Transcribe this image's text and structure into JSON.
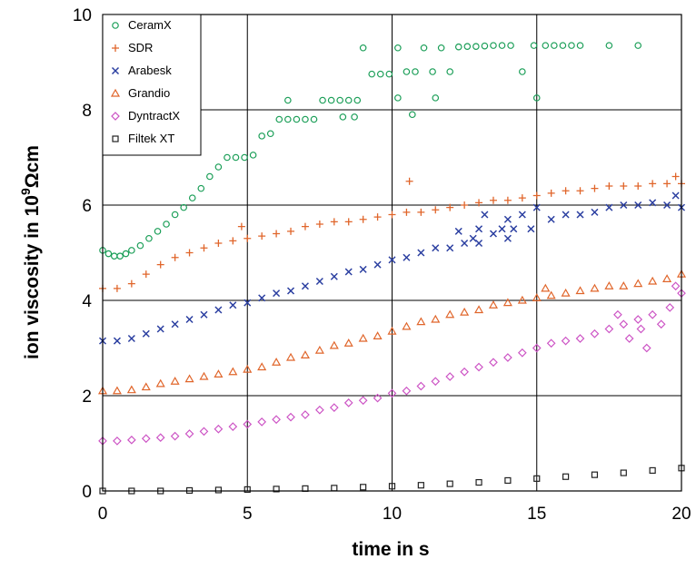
{
  "chart_data": {
    "type": "scatter",
    "title": "",
    "xlabel": "time in s",
    "ylabel_parts": [
      "ion viscosity in 10",
      "9",
      "Ωcm"
    ],
    "xlim": [
      0,
      20
    ],
    "ylim": [
      0,
      10
    ],
    "x_ticks": [
      "0",
      "5",
      "10",
      "15",
      "20"
    ],
    "y_ticks": [
      "0",
      "2",
      "4",
      "6",
      "8",
      "10"
    ],
    "grid": true,
    "legend_position": "top-left",
    "series": [
      {
        "name": "CeramX",
        "marker": "circle",
        "color": "#1a9e57",
        "points": [
          [
            0,
            5.05
          ],
          [
            0.2,
            4.98
          ],
          [
            0.4,
            4.93
          ],
          [
            0.6,
            4.93
          ],
          [
            0.8,
            4.98
          ],
          [
            1,
            5.05
          ],
          [
            1.3,
            5.15
          ],
          [
            1.6,
            5.3
          ],
          [
            1.9,
            5.45
          ],
          [
            2.2,
            5.6
          ],
          [
            2.5,
            5.8
          ],
          [
            2.8,
            5.95
          ],
          [
            3.1,
            6.15
          ],
          [
            3.4,
            6.35
          ],
          [
            3.7,
            6.6
          ],
          [
            4,
            6.8
          ],
          [
            4.3,
            7.0
          ],
          [
            4.6,
            7.0
          ],
          [
            4.9,
            7.0
          ],
          [
            5.2,
            7.05
          ],
          [
            5.5,
            7.45
          ],
          [
            5.8,
            7.5
          ],
          [
            6.1,
            7.8
          ],
          [
            6.4,
            7.8
          ],
          [
            6.4,
            8.2
          ],
          [
            6.7,
            7.8
          ],
          [
            7.0,
            7.8
          ],
          [
            7.3,
            7.8
          ],
          [
            7.6,
            8.2
          ],
          [
            7.9,
            8.2
          ],
          [
            8.2,
            8.2
          ],
          [
            8.5,
            8.2
          ],
          [
            8.8,
            8.2
          ],
          [
            8.3,
            7.85
          ],
          [
            8.7,
            7.85
          ],
          [
            9.0,
            9.3
          ],
          [
            9.3,
            8.75
          ],
          [
            9.6,
            8.75
          ],
          [
            9.9,
            8.75
          ],
          [
            10.2,
            9.3
          ],
          [
            10.5,
            8.8
          ],
          [
            10.8,
            8.8
          ],
          [
            11.1,
            9.3
          ],
          [
            11.4,
            8.8
          ],
          [
            11.7,
            9.3
          ],
          [
            12.0,
            8.8
          ],
          [
            12.3,
            9.32
          ],
          [
            12.6,
            9.33
          ],
          [
            12.9,
            9.33
          ],
          [
            13.2,
            9.34
          ],
          [
            13.5,
            9.35
          ],
          [
            13.8,
            9.35
          ],
          [
            14.1,
            9.35
          ],
          [
            14.5,
            8.8
          ],
          [
            14.9,
            9.35
          ],
          [
            15.0,
            8.25
          ],
          [
            15.3,
            9.35
          ],
          [
            15.6,
            9.35
          ],
          [
            15.9,
            9.35
          ],
          [
            16.2,
            9.35
          ],
          [
            16.5,
            9.35
          ],
          [
            17.5,
            9.35
          ],
          [
            18.5,
            9.35
          ],
          [
            10.2,
            8.25
          ],
          [
            10.7,
            7.9
          ],
          [
            11.5,
            8.25
          ]
        ]
      },
      {
        "name": "SDR",
        "marker": "plus",
        "color": "#e0652a",
        "points": [
          [
            0,
            4.25
          ],
          [
            0.5,
            4.25
          ],
          [
            1,
            4.35
          ],
          [
            1.5,
            4.55
          ],
          [
            2,
            4.75
          ],
          [
            2.5,
            4.9
          ],
          [
            3,
            5.0
          ],
          [
            3.5,
            5.1
          ],
          [
            4,
            5.2
          ],
          [
            4.5,
            5.25
          ],
          [
            4.8,
            5.55
          ],
          [
            5,
            5.3
          ],
          [
            5.5,
            5.35
          ],
          [
            6,
            5.4
          ],
          [
            6.5,
            5.45
          ],
          [
            7,
            5.55
          ],
          [
            7.5,
            5.6
          ],
          [
            8,
            5.65
          ],
          [
            8.5,
            5.65
          ],
          [
            9,
            5.7
          ],
          [
            9.5,
            5.75
          ],
          [
            10,
            5.8
          ],
          [
            10.5,
            5.85
          ],
          [
            10.6,
            6.5
          ],
          [
            11,
            5.85
          ],
          [
            11.5,
            5.9
          ],
          [
            12,
            5.95
          ],
          [
            12.5,
            6.0
          ],
          [
            13,
            6.05
          ],
          [
            13.5,
            6.1
          ],
          [
            14,
            6.1
          ],
          [
            14.5,
            6.15
          ],
          [
            15,
            6.2
          ],
          [
            15.5,
            6.25
          ],
          [
            16,
            6.3
          ],
          [
            16.5,
            6.3
          ],
          [
            17,
            6.35
          ],
          [
            17.5,
            6.4
          ],
          [
            18,
            6.4
          ],
          [
            18.5,
            6.4
          ],
          [
            19,
            6.45
          ],
          [
            19.5,
            6.45
          ],
          [
            19.8,
            6.6
          ],
          [
            20,
            6.45
          ]
        ]
      },
      {
        "name": "Arabesk",
        "marker": "cross",
        "color": "#2a3ea0",
        "points": [
          [
            0,
            3.15
          ],
          [
            0.5,
            3.15
          ],
          [
            1,
            3.2
          ],
          [
            1.5,
            3.3
          ],
          [
            2,
            3.4
          ],
          [
            2.5,
            3.5
          ],
          [
            3,
            3.6
          ],
          [
            3.5,
            3.7
          ],
          [
            4,
            3.8
          ],
          [
            4.5,
            3.9
          ],
          [
            5,
            3.95
          ],
          [
            5.5,
            4.05
          ],
          [
            6,
            4.15
          ],
          [
            6.5,
            4.2
          ],
          [
            7,
            4.3
          ],
          [
            7.5,
            4.4
          ],
          [
            8,
            4.5
          ],
          [
            8.5,
            4.6
          ],
          [
            9,
            4.65
          ],
          [
            9.5,
            4.75
          ],
          [
            10,
            4.85
          ],
          [
            10.5,
            4.9
          ],
          [
            11,
            5.0
          ],
          [
            11.5,
            5.1
          ],
          [
            12,
            5.1
          ],
          [
            12.3,
            5.45
          ],
          [
            12.5,
            5.2
          ],
          [
            12.8,
            5.3
          ],
          [
            13,
            5.5
          ],
          [
            13.2,
            5.8
          ],
          [
            13.5,
            5.4
          ],
          [
            13.8,
            5.5
          ],
          [
            14,
            5.3
          ],
          [
            14.2,
            5.5
          ],
          [
            14.5,
            5.8
          ],
          [
            14.8,
            5.5
          ],
          [
            15,
            5.95
          ],
          [
            15.5,
            5.7
          ],
          [
            16,
            5.8
          ],
          [
            16.5,
            5.8
          ],
          [
            17,
            5.85
          ],
          [
            17.5,
            5.95
          ],
          [
            18,
            6.0
          ],
          [
            18.5,
            6.0
          ],
          [
            19,
            6.05
          ],
          [
            19.5,
            6.0
          ],
          [
            19.8,
            6.2
          ],
          [
            20,
            5.95
          ],
          [
            13,
            5.2
          ],
          [
            14,
            5.7
          ]
        ]
      },
      {
        "name": "Grandio",
        "marker": "triangle",
        "color": "#e0652a",
        "points": [
          [
            0,
            2.1
          ],
          [
            0.5,
            2.1
          ],
          [
            1,
            2.12
          ],
          [
            1.5,
            2.18
          ],
          [
            2,
            2.25
          ],
          [
            2.5,
            2.3
          ],
          [
            3,
            2.35
          ],
          [
            3.5,
            2.4
          ],
          [
            4,
            2.45
          ],
          [
            4.5,
            2.5
          ],
          [
            5,
            2.55
          ],
          [
            5.5,
            2.6
          ],
          [
            6,
            2.7
          ],
          [
            6.5,
            2.8
          ],
          [
            7,
            2.85
          ],
          [
            7.5,
            2.95
          ],
          [
            8,
            3.05
          ],
          [
            8.5,
            3.1
          ],
          [
            9,
            3.2
          ],
          [
            9.5,
            3.25
          ],
          [
            10,
            3.35
          ],
          [
            10.5,
            3.45
          ],
          [
            11,
            3.55
          ],
          [
            11.5,
            3.6
          ],
          [
            12,
            3.7
          ],
          [
            12.5,
            3.75
          ],
          [
            13,
            3.8
          ],
          [
            13.5,
            3.9
          ],
          [
            14,
            3.95
          ],
          [
            14.5,
            4.0
          ],
          [
            15,
            4.05
          ],
          [
            15.3,
            4.25
          ],
          [
            15.5,
            4.1
          ],
          [
            16,
            4.15
          ],
          [
            16.5,
            4.2
          ],
          [
            17,
            4.25
          ],
          [
            17.5,
            4.3
          ],
          [
            18,
            4.3
          ],
          [
            18.5,
            4.35
          ],
          [
            19,
            4.4
          ],
          [
            19.5,
            4.45
          ],
          [
            20,
            4.55
          ]
        ]
      },
      {
        "name": "DyntractX",
        "marker": "diamond",
        "color": "#cc52c4",
        "points": [
          [
            0,
            1.05
          ],
          [
            0.5,
            1.05
          ],
          [
            1,
            1.07
          ],
          [
            1.5,
            1.1
          ],
          [
            2,
            1.12
          ],
          [
            2.5,
            1.15
          ],
          [
            3,
            1.2
          ],
          [
            3.5,
            1.25
          ],
          [
            4,
            1.3
          ],
          [
            4.5,
            1.35
          ],
          [
            5,
            1.4
          ],
          [
            5.5,
            1.45
          ],
          [
            6,
            1.5
          ],
          [
            6.5,
            1.55
          ],
          [
            7,
            1.6
          ],
          [
            7.5,
            1.7
          ],
          [
            8,
            1.75
          ],
          [
            8.5,
            1.85
          ],
          [
            9,
            1.9
          ],
          [
            9.5,
            1.95
          ],
          [
            10,
            2.05
          ],
          [
            10.5,
            2.1
          ],
          [
            11,
            2.2
          ],
          [
            11.5,
            2.3
          ],
          [
            12,
            2.4
          ],
          [
            12.5,
            2.5
          ],
          [
            13,
            2.6
          ],
          [
            13.5,
            2.7
          ],
          [
            14,
            2.8
          ],
          [
            14.5,
            2.9
          ],
          [
            15,
            3.0
          ],
          [
            15.5,
            3.1
          ],
          [
            16,
            3.15
          ],
          [
            16.5,
            3.2
          ],
          [
            17,
            3.3
          ],
          [
            17.5,
            3.4
          ],
          [
            18,
            3.5
          ],
          [
            18.2,
            3.2
          ],
          [
            18.5,
            3.6
          ],
          [
            18.8,
            3.0
          ],
          [
            19,
            3.7
          ],
          [
            19.3,
            3.5
          ],
          [
            19.6,
            3.85
          ],
          [
            20,
            4.15
          ],
          [
            17.8,
            3.7
          ],
          [
            18.6,
            3.4
          ],
          [
            19.8,
            4.3
          ]
        ]
      },
      {
        "name": "Filtek XT",
        "marker": "square",
        "color": "#222222",
        "points": [
          [
            0,
            0.0
          ],
          [
            1,
            0.0
          ],
          [
            2,
            0.0
          ],
          [
            3,
            0.01
          ],
          [
            4,
            0.02
          ],
          [
            5,
            0.03
          ],
          [
            6,
            0.04
          ],
          [
            7,
            0.05
          ],
          [
            8,
            0.06
          ],
          [
            9,
            0.08
          ],
          [
            10,
            0.1
          ],
          [
            11,
            0.12
          ],
          [
            12,
            0.15
          ],
          [
            13,
            0.18
          ],
          [
            14,
            0.22
          ],
          [
            15,
            0.26
          ],
          [
            16,
            0.3
          ],
          [
            17,
            0.34
          ],
          [
            18,
            0.38
          ],
          [
            19,
            0.43
          ],
          [
            20,
            0.48
          ]
        ]
      }
    ]
  }
}
